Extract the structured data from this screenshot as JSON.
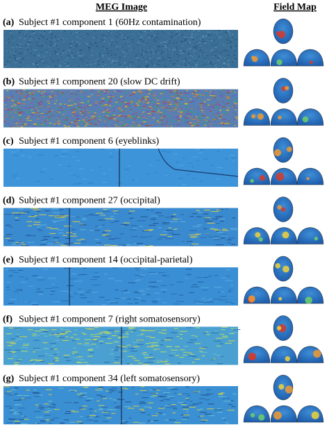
{
  "header": {
    "left": "MEG Image",
    "right": "Field Map"
  },
  "panels": [
    {
      "letter": "(a)",
      "caption": "Subject #1 component 1 (60Hz contamination)"
    },
    {
      "letter": "(b)",
      "caption": "Subject #1 component 20 (slow DC drift)"
    },
    {
      "letter": "(c)",
      "caption": "Subject #1 component 6 (eyeblinks)"
    },
    {
      "letter": "(d)",
      "caption": "Subject #1 component 27 (occipital)"
    },
    {
      "letter": "(e)",
      "caption": "Subject #1 component 14 (occipital-parietal)"
    },
    {
      "letter": "(f)",
      "caption": "Subject #1 component 7 (right somatosensory)"
    },
    {
      "letter": "(g)",
      "caption": "Subject #1 component 34 (left somatosensory)"
    }
  ]
}
